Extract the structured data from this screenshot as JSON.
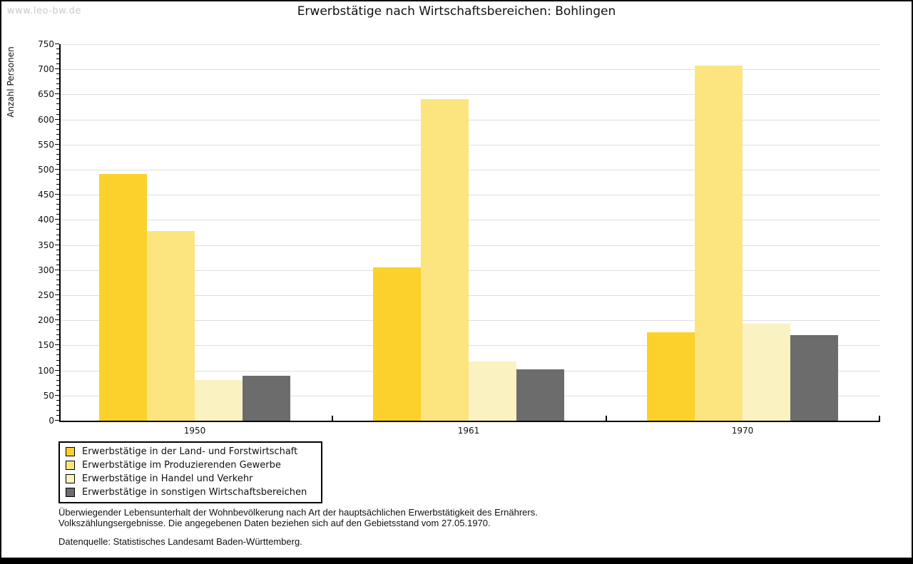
{
  "watermark": "www.leo-bw.de",
  "title": "Erwerbstätige nach Wirtschaftsbereichen: Bohlingen",
  "chart_data": {
    "type": "bar",
    "title": "Erwerbstätige nach Wirtschaftsbereichen: Bohlingen",
    "xlabel": "",
    "ylabel": "Anzahl Personen",
    "ylim": [
      0,
      750
    ],
    "ytick_step": 50,
    "yminor_step": 10,
    "grid": true,
    "legend_position": "bottom-left",
    "categories": [
      "1950",
      "1961",
      "1970"
    ],
    "series": [
      {
        "name": "Erwerbstätige in der Land- und Forstwirtschaft",
        "color": "#fcd12b",
        "values": [
          491,
          305,
          176
        ]
      },
      {
        "name": "Erwerbstätige im Produzierenden Gewerbe",
        "color": "#fce57e",
        "values": [
          378,
          641,
          708
        ]
      },
      {
        "name": "Erwerbstätige in Handel und Verkehr",
        "color": "#fbf2c1",
        "values": [
          81,
          118,
          193
        ]
      },
      {
        "name": "Erwerbstätige in sonstigen Wirtschaftsbereichen",
        "color": "#6c6c6c",
        "values": [
          90,
          102,
          170
        ]
      }
    ]
  },
  "footnotes": [
    "Überwiegender Lebensunterhalt der Wohnbevölkerung nach Art der hauptsächlichen Erwerbstätigkeit des Ernährers.",
    "Volkszählungsergebnisse. Die angegebenen Daten beziehen sich auf den Gebietsstand vom 27.05.1970."
  ],
  "source": "Datenquelle: Statistisches Landesamt Baden-Württemberg.",
  "colors": {
    "grid": "#dedede",
    "axis": "#000000",
    "watermark": "#c9c9c9",
    "background": "#ffffff"
  }
}
